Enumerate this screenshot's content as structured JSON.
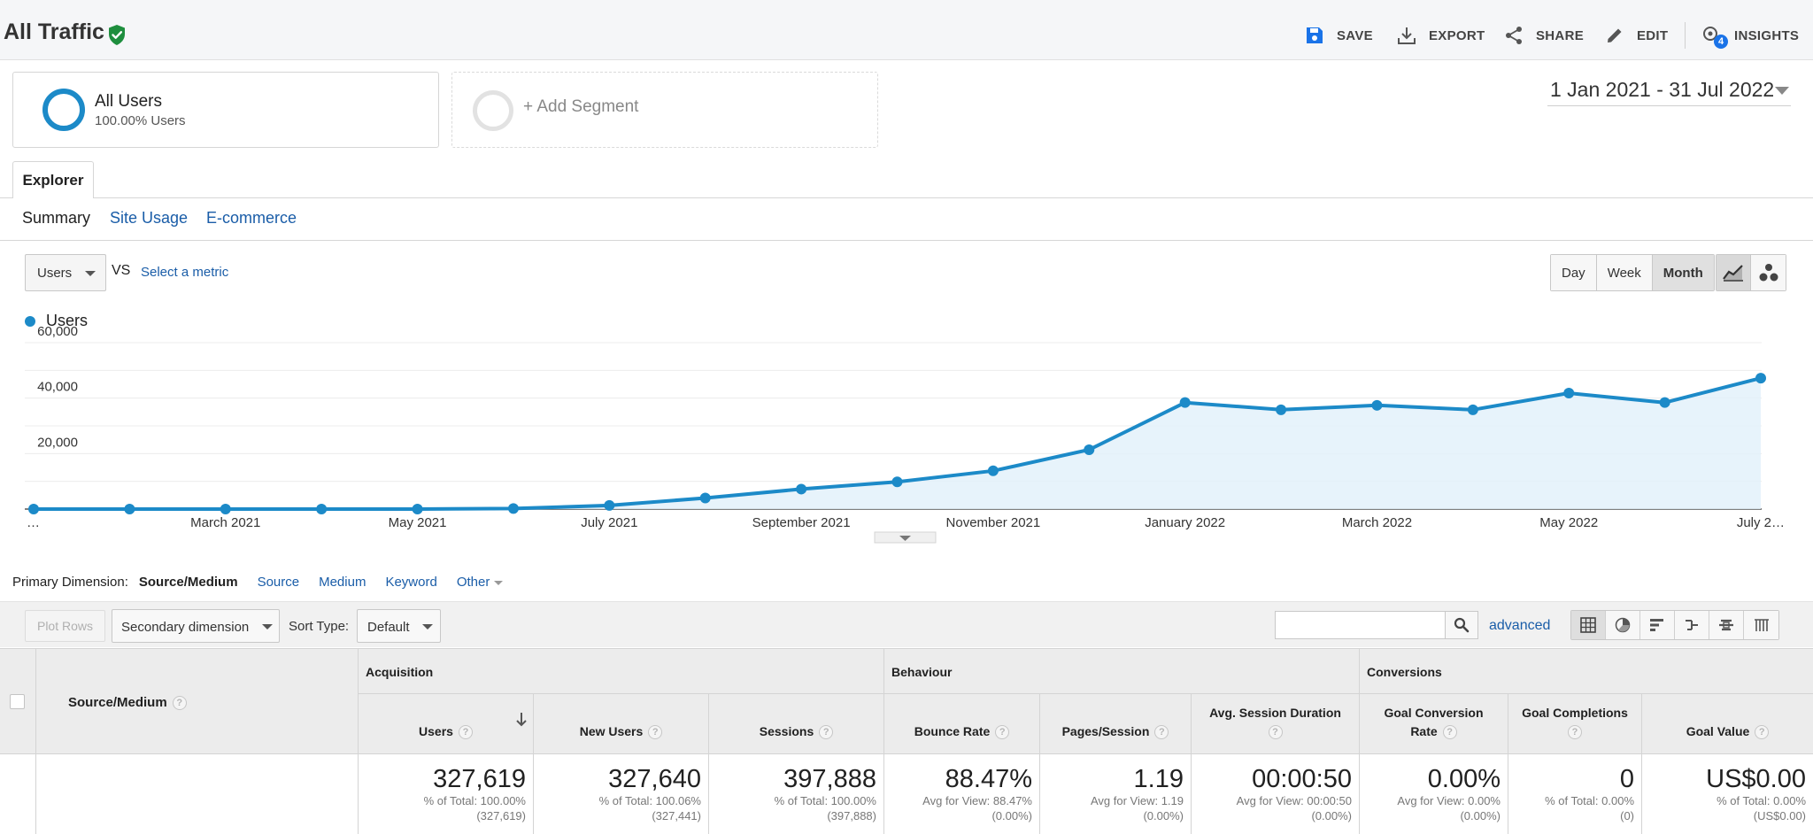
{
  "header": {
    "title": "All Traffic",
    "actions": {
      "save": "SAVE",
      "export": "EXPORT",
      "share": "SHARE",
      "edit": "EDIT",
      "insights": "INSIGHTS"
    },
    "insights_badge": "4"
  },
  "segments": {
    "active": {
      "name": "All Users",
      "subtitle": "100.00% Users"
    },
    "add_label": "+ Add Segment"
  },
  "date_range": "1 Jan 2021 - 31 Jul 2022",
  "explorer": {
    "tab": "Explorer",
    "subtabs": {
      "summary": "Summary",
      "site_usage": "Site Usage",
      "ecommerce": "E-commerce"
    }
  },
  "metric_controls": {
    "metric": "Users",
    "vs": "VS",
    "select_metric": "Select a metric",
    "granularity": {
      "day": "Day",
      "week": "Week",
      "month": "Month",
      "active": "Month"
    }
  },
  "chart_data": {
    "type": "area",
    "series": [
      {
        "name": "Users",
        "color": "#1c8ac8",
        "x": [
          "2021-01",
          "2021-02",
          "2021-03",
          "2021-04",
          "2021-05",
          "2021-06",
          "2021-07",
          "2021-08",
          "2021-09",
          "2021-10",
          "2021-11",
          "2021-12",
          "2022-01",
          "2022-02",
          "2022-03",
          "2022-04",
          "2022-05",
          "2022-06",
          "2022-07"
        ],
        "values": [
          0,
          0,
          0,
          0,
          0,
          200,
          1300,
          4000,
          7200,
          9800,
          13800,
          21400,
          38400,
          35800,
          37400,
          35800,
          41800,
          38400,
          47200
        ]
      }
    ],
    "x_tick_labels": [
      "…",
      "March 2021",
      "May 2021",
      "July 2021",
      "September 2021",
      "November 2021",
      "January 2022",
      "March 2022",
      "May 2022",
      "July 2…"
    ],
    "y_tick_labels": [
      "20,000",
      "40,000",
      "60,000"
    ],
    "y_ticks": [
      20000,
      40000,
      60000
    ],
    "ylim": [
      0,
      60000
    ],
    "grid": true,
    "legend": "top-left"
  },
  "primary_dimension": {
    "label": "Primary Dimension:",
    "current": "Source/Medium",
    "options": {
      "source": "Source",
      "medium": "Medium",
      "keyword": "Keyword",
      "other": "Other"
    }
  },
  "table_toolbar": {
    "plot_rows": "Plot Rows",
    "secondary_dimension": "Secondary dimension",
    "sort_type_label": "Sort Type:",
    "sort_type_value": "Default",
    "search_placeholder": "",
    "advanced": "advanced"
  },
  "table": {
    "dimension_header": "Source/Medium",
    "groups": {
      "acquisition": "Acquisition",
      "behaviour": "Behaviour",
      "conversions": "Conversions"
    },
    "columns": {
      "users": "Users",
      "new_users": "New Users",
      "sessions": "Sessions",
      "bounce_rate": "Bounce Rate",
      "pages_session": "Pages/Session",
      "avg_session_duration": "Avg. Session Duration",
      "goal_conversion_rate": "Goal Conversion Rate",
      "goal_completions": "Goal Completions",
      "goal_value": "Goal Value"
    },
    "totals": {
      "users": {
        "value": "327,619",
        "line1": "% of Total: 100.00%",
        "line2": "(327,619)"
      },
      "new_users": {
        "value": "327,640",
        "line1": "% of Total: 100.06%",
        "line2": "(327,441)"
      },
      "sessions": {
        "value": "397,888",
        "line1": "% of Total: 100.00%",
        "line2": "(397,888)"
      },
      "bounce_rate": {
        "value": "88.47%",
        "line1": "Avg for View: 88.47%",
        "line2": "(0.00%)"
      },
      "pages_session": {
        "value": "1.19",
        "line1": "Avg for View: 1.19",
        "line2": "(0.00%)"
      },
      "avg_session_duration": {
        "value": "00:00:50",
        "line1": "Avg for View: 00:00:50",
        "line2": "(0.00%)"
      },
      "goal_conversion_rate": {
        "value": "0.00%",
        "line1": "Avg for View: 0.00%",
        "line2": "(0.00%)"
      },
      "goal_completions": {
        "value": "0",
        "line1": "% of Total: 0.00%",
        "line2": "(0)"
      },
      "goal_value": {
        "value": "US$0.00",
        "line1": "% of Total: 0.00%",
        "line2": "(US$0.00)"
      }
    }
  },
  "colors": {
    "accent": "#1c8ac8",
    "link": "#1a5da8",
    "verified": "#1e8e3e"
  }
}
